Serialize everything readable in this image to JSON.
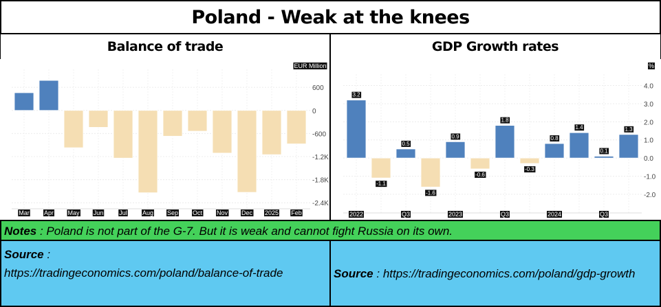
{
  "title": "Poland - Weak at the knees",
  "headers": {
    "left": "Balance of trade",
    "right": "GDP Growth rates"
  },
  "notes": {
    "label": "Notes",
    "text": " : Poland is not part of the G-7.  But it is weak and cannot fight Russia on its own."
  },
  "sources": {
    "left": {
      "label": "Source",
      "text": " : ",
      "url": "https://tradingeconomics.com/poland/balance-of-trade"
    },
    "right": {
      "label": "Source",
      "text": " : ",
      "url": "https://tradingeconomics.com/poland/gdp-growth"
    }
  },
  "colors": {
    "positive": "#4f81bd",
    "negative": "#f5deb3",
    "notes_bg": "#44d15a",
    "source_bg": "#5fc9f1"
  },
  "chart_data": [
    {
      "type": "bar",
      "title": "Balance of trade",
      "unit": "EUR Million",
      "categories": [
        "Mar",
        "Apr",
        "May",
        "Jun",
        "Jul",
        "Aug",
        "Sep",
        "Oct",
        "Nov",
        "Dec",
        "2025",
        "Feb"
      ],
      "values": [
        460,
        780,
        -970,
        -440,
        -1240,
        -2140,
        -670,
        -540,
        -1110,
        -2130,
        -1150,
        -870
      ],
      "yticks": [
        600,
        0,
        -600,
        -1200,
        -1800,
        -2400
      ],
      "ytick_labels": [
        "600",
        "0",
        "-600",
        "-1.2K",
        "-1.8K",
        "-2.4K"
      ],
      "ylim": [
        -2450,
        960
      ],
      "grid": true
    },
    {
      "type": "bar",
      "title": "GDP Growth rates",
      "unit": "%",
      "categories": [
        "2022",
        "",
        "Q3",
        "",
        "2023",
        "",
        "Q3",
        "",
        "2024",
        "",
        "Q3",
        ""
      ],
      "values": [
        3.2,
        -1.1,
        0.5,
        -1.6,
        0.9,
        -0.6,
        1.8,
        -0.3,
        0.8,
        1.4,
        0.1,
        1.3
      ],
      "data_labels": [
        "3.2",
        "-1.1",
        "0.5",
        "-1.6",
        "0.9",
        "-0.6",
        "1.8",
        "-0.3",
        "0.8",
        "1.4",
        "0.1",
        "1.3"
      ],
      "yticks": [
        4,
        3,
        2,
        1,
        0,
        -1,
        -2
      ],
      "ytick_labels": [
        "4.0",
        "3.0",
        "2.0",
        "1.0",
        "0.0",
        "-1.0",
        "-2.0"
      ],
      "ylim": [
        -2.8,
        4.4
      ],
      "grid": true
    }
  ]
}
